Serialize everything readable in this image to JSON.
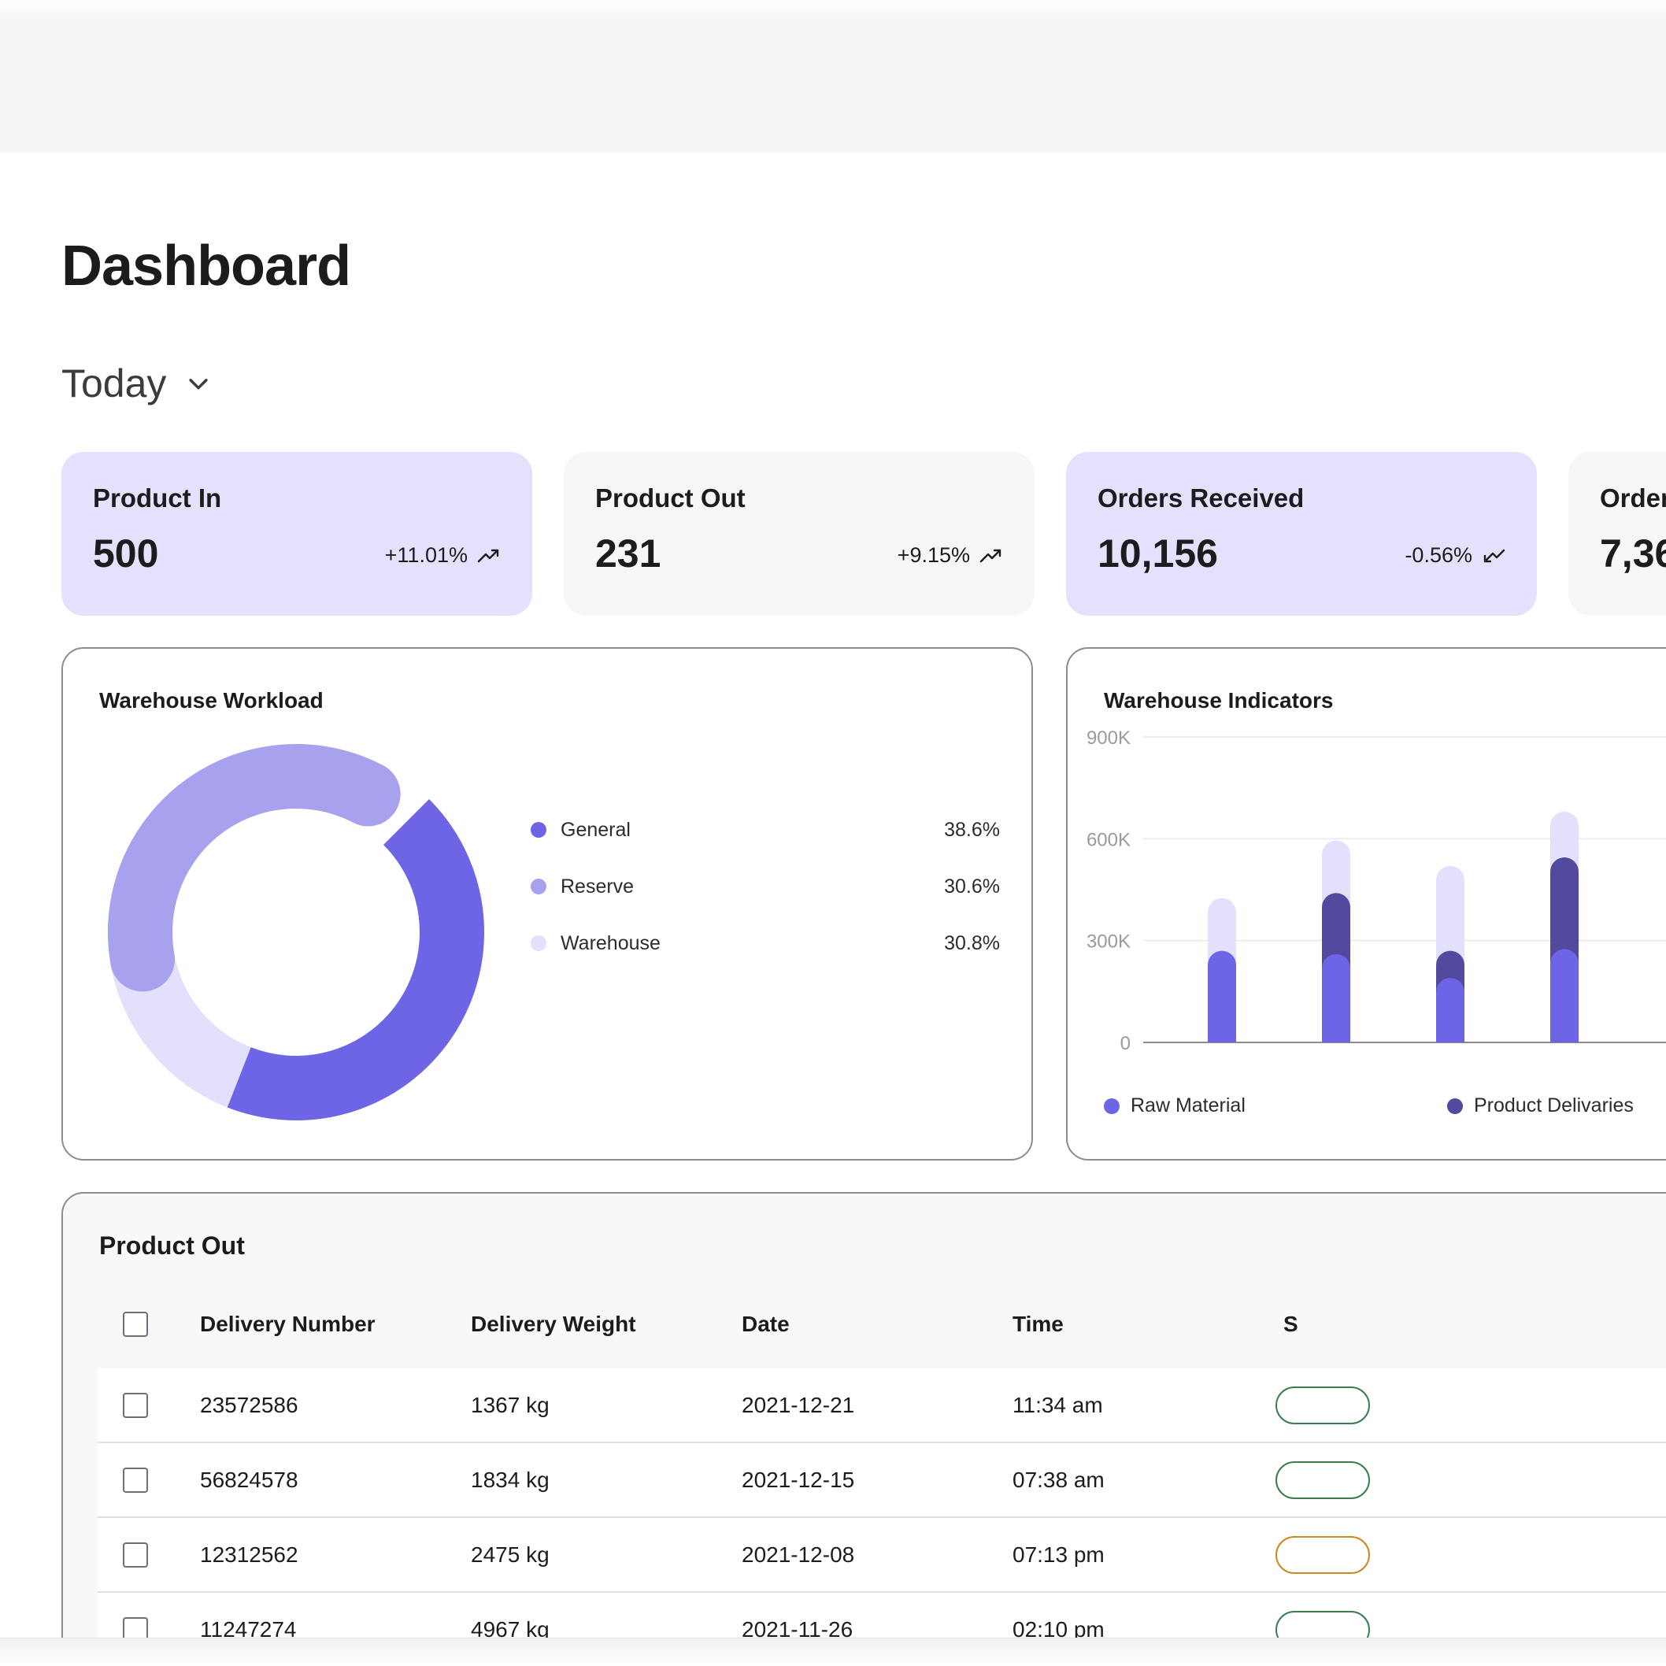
{
  "page": {
    "title": "Dashboard"
  },
  "period": {
    "label": "Today"
  },
  "stats": [
    {
      "title": "Product In",
      "value": "500",
      "change": "+11.01%",
      "trend": "up",
      "tone": "purple"
    },
    {
      "title": "Product Out",
      "value": "231",
      "change": "+9.15%",
      "trend": "up",
      "tone": "grey"
    },
    {
      "title": "Orders Received",
      "value": "10,156",
      "change": "-0.56%",
      "trend": "down",
      "tone": "purple"
    },
    {
      "title": "Orders",
      "value": "7,36",
      "change": "",
      "trend": "",
      "tone": "grey"
    }
  ],
  "workload": {
    "title": "Warehouse Workload",
    "legend": [
      {
        "label": "General",
        "value": "38.6%",
        "color": "#6e64e6"
      },
      {
        "label": "Reserve",
        "value": "30.6%",
        "color": "#a8a2ee"
      },
      {
        "label": "Warehouse",
        "value": "30.8%",
        "color": "#e2e0fa"
      }
    ]
  },
  "indicators": {
    "title": "Warehouse Indicators",
    "legend": [
      {
        "label": "Raw Material",
        "color": "#6e64e6"
      },
      {
        "label": "Product Delivaries",
        "color": "#514a9e"
      }
    ]
  },
  "chart_data": [
    {
      "type": "pie",
      "title": "Warehouse Workload",
      "categories": [
        "General",
        "Reserve",
        "Warehouse"
      ],
      "values": [
        38.6,
        30.6,
        30.8
      ],
      "colors": [
        "#6e64e6",
        "#a8a2ee",
        "#e2e0fa"
      ],
      "donut": true
    },
    {
      "type": "bar",
      "title": "Warehouse Indicators",
      "stacked": true,
      "ylim": [
        0,
        900000
      ],
      "yticks": [
        "0",
        "300K",
        "600K",
        "900K"
      ],
      "categories": [
        "1",
        "2",
        "3",
        "4"
      ],
      "series": [
        {
          "name": "Raw Material",
          "values": [
            270000,
            260000,
            190000,
            275000
          ],
          "color": "#6e64e6"
        },
        {
          "name": "Product Delivaries",
          "values": [
            0,
            180000,
            80000,
            270000
          ],
          "color": "#514a9e"
        },
        {
          "name": "",
          "values": [
            155000,
            155000,
            250000,
            135000
          ],
          "color": "#e2e0fa"
        }
      ],
      "legend_position": "bottom"
    }
  ],
  "product_out_table": {
    "title": "Product Out",
    "columns": [
      "Delivery Number",
      "Delivery Weight",
      "Date",
      "Time",
      "S"
    ],
    "rows": [
      {
        "number": "23572586",
        "weight": "1367 kg",
        "date": "2021-12-21",
        "time": "11:34 am",
        "status_color": "#3c7a4f"
      },
      {
        "number": "56824578",
        "weight": "1834 kg",
        "date": "2021-12-15",
        "time": "07:38 am",
        "status_color": "#3c7a4f"
      },
      {
        "number": "12312562",
        "weight": "2475 kg",
        "date": "2021-12-08",
        "time": "07:13 pm",
        "status_color": "#c78a22"
      },
      {
        "number": "11247274",
        "weight": "4967 kg",
        "date": "2021-11-26",
        "time": "02:10 pm",
        "status_color": "#3c7a4f"
      }
    ]
  }
}
